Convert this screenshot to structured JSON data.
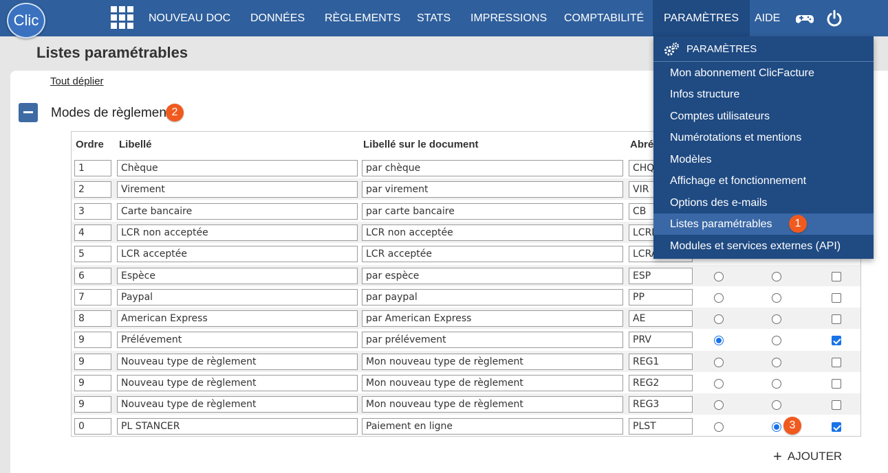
{
  "app": {
    "logo_text": "Clic"
  },
  "nav": {
    "items": [
      "NOUVEAU DOC",
      "DONNÉES",
      "RÈGLEMENTS",
      "STATS",
      "IMPRESSIONS",
      "COMPTABILITÉ",
      "PARAMÈTRES",
      "AIDE"
    ],
    "active": "PARAMÈTRES",
    "icons": [
      "apps-grid-icon",
      "gamepad-icon",
      "power-icon"
    ]
  },
  "page": {
    "title": "Listes paramétrables",
    "expand_all": "Tout déplier",
    "section_title": "Modes de règlement",
    "add_label": "AJOUTER"
  },
  "badges": {
    "one": "1",
    "two": "2",
    "three": "3"
  },
  "table": {
    "headers": [
      "Ordre",
      "Libellé",
      "Libellé sur le document",
      "Abré"
    ],
    "rows": [
      {
        "ordre": "1",
        "libelle": "Chèque",
        "doc": "par chèque",
        "abr": "CHQ",
        "r1": null,
        "r2": null,
        "chk": null
      },
      {
        "ordre": "2",
        "libelle": "Virement",
        "doc": "par virement",
        "abr": "VIR",
        "r1": null,
        "r2": null,
        "chk": null
      },
      {
        "ordre": "3",
        "libelle": "Carte bancaire",
        "doc": "par carte bancaire",
        "abr": "CB",
        "r1": null,
        "r2": null,
        "chk": null
      },
      {
        "ordre": "4",
        "libelle": "LCR non acceptée",
        "doc": "LCR non acceptée",
        "abr": "LCRN",
        "r1": null,
        "r2": null,
        "chk": null
      },
      {
        "ordre": "5",
        "libelle": "LCR acceptée",
        "doc": "LCR acceptée",
        "abr": "LCRA",
        "r1": null,
        "r2": null,
        "chk": null
      },
      {
        "ordre": "6",
        "libelle": "Espèce",
        "doc": "par espèce",
        "abr": "ESP",
        "r1": false,
        "r2": false,
        "chk": false
      },
      {
        "ordre": "7",
        "libelle": "Paypal",
        "doc": "par paypal",
        "abr": "PP",
        "r1": false,
        "r2": false,
        "chk": false
      },
      {
        "ordre": "8",
        "libelle": "American Express",
        "doc": "par American Express",
        "abr": "AE",
        "r1": false,
        "r2": false,
        "chk": false
      },
      {
        "ordre": "9",
        "libelle": "Prélévement",
        "doc": "par prélévement",
        "abr": "PRV",
        "r1": true,
        "r2": false,
        "chk": true
      },
      {
        "ordre": "9",
        "libelle": "Nouveau type de règlement",
        "doc": "Mon nouveau type de règlement",
        "abr": "REG1",
        "r1": false,
        "r2": false,
        "chk": false
      },
      {
        "ordre": "9",
        "libelle": "Nouveau type de règlement",
        "doc": "Mon nouveau type de règlement",
        "abr": "REG2",
        "r1": false,
        "r2": false,
        "chk": false
      },
      {
        "ordre": "9",
        "libelle": "Nouveau type de règlement",
        "doc": "Mon nouveau type de règlement",
        "abr": "REG3",
        "r1": false,
        "r2": false,
        "chk": false
      },
      {
        "ordre": "0",
        "libelle": "PL STANCER",
        "doc": "Paiement en ligne",
        "abr": "PLST",
        "r1": false,
        "r2": true,
        "chk": true
      }
    ]
  },
  "dropdown": {
    "header": "PARAMÈTRES",
    "items": [
      "Mon abonnement ClicFacture",
      "Infos structure",
      "Comptes utilisateurs",
      "Numérotations et mentions",
      "Modèles",
      "Affichage et fonctionnement",
      "Options des e-mails",
      "Listes paramétrables",
      "Modules et services externes (API)"
    ],
    "highlighted": "Listes paramétrables"
  },
  "colors": {
    "topbar": "#2f5f9c",
    "active": "#1f4a82",
    "badge": "#f05a1f",
    "accent": "#1a73e8"
  }
}
